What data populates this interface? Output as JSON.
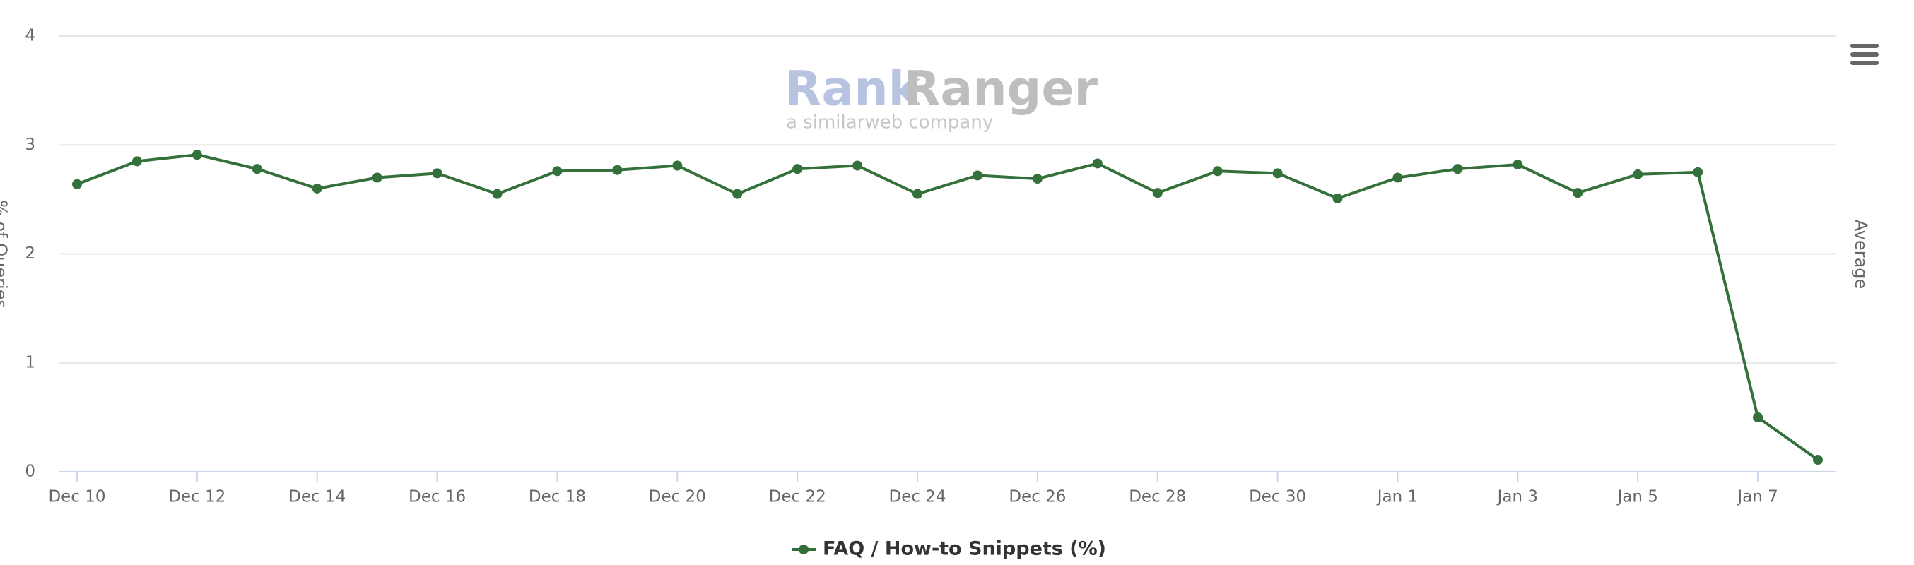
{
  "chart_data": {
    "type": "line",
    "y_axis_label": "% of Queries",
    "y2_axis_label": "Average",
    "watermark": {
      "brand_a": "Rank",
      "brand_b": "Ranger",
      "tagline": "a similarweb company"
    },
    "categories": [
      "Dec 10",
      null,
      "Dec 12",
      null,
      "Dec 14",
      null,
      "Dec 16",
      null,
      "Dec 18",
      null,
      "Dec 20",
      null,
      "Dec 22",
      null,
      "Dec 24",
      null,
      "Dec 26",
      null,
      "Dec 28",
      null,
      "Dec 30",
      null,
      "Jan 1",
      null,
      "Jan 3",
      null,
      "Jan 5",
      null,
      "Jan 7",
      null
    ],
    "series": [
      {
        "name": "FAQ / How-to Snippets (%)",
        "color": "#33703a",
        "values": [
          2.64,
          2.85,
          2.91,
          2.78,
          2.6,
          2.7,
          2.74,
          2.55,
          2.76,
          2.77,
          2.81,
          2.55,
          2.78,
          2.81,
          2.55,
          2.72,
          2.69,
          2.83,
          2.56,
          2.76,
          2.74,
          2.51,
          2.7,
          2.78,
          2.82,
          2.56,
          2.73,
          2.75,
          0.5,
          0.11
        ]
      }
    ],
    "ylim": [
      0,
      4
    ],
    "yticks": [
      0,
      1,
      2,
      3,
      4
    ],
    "grid": true,
    "legend": "bottom"
  }
}
